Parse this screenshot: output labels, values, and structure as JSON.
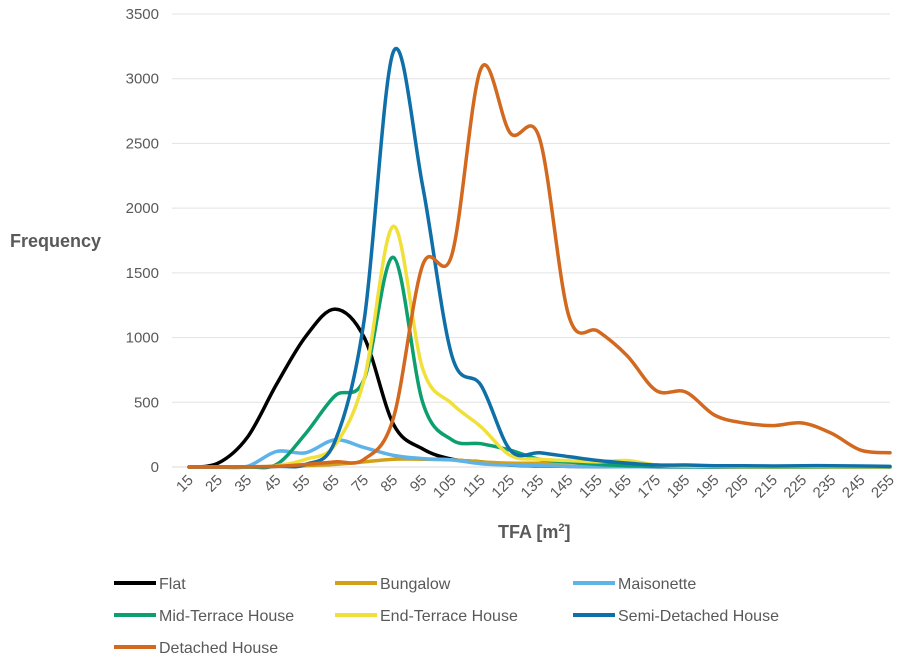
{
  "chart_data": {
    "type": "line",
    "xlabel": "TFA [m",
    "xlabel_sup": "2",
    "xlabel_close": "]",
    "ylabel": "Frequency",
    "ylim": [
      0,
      3500
    ],
    "yticks": [
      "0",
      "500",
      "1000",
      "1500",
      "2000",
      "2500",
      "3000",
      "3500"
    ],
    "x": [
      15,
      25,
      35,
      45,
      55,
      65,
      75,
      85,
      95,
      105,
      115,
      125,
      135,
      145,
      155,
      165,
      175,
      185,
      195,
      205,
      215,
      225,
      235,
      245,
      255
    ],
    "xticks": [
      "15",
      "25",
      "35",
      "45",
      "55",
      "65",
      "75",
      "85",
      "95",
      "105",
      "115",
      "125",
      "135",
      "145",
      "155",
      "165",
      "175",
      "185",
      "195",
      "205",
      "215",
      "225",
      "235",
      "245",
      "255"
    ],
    "grid": true,
    "legend_position": "bottom",
    "series": [
      {
        "name": "Flat",
        "color": "#000000",
        "values": [
          0,
          30,
          230,
          640,
          1010,
          1220,
          1000,
          330,
          140,
          60,
          40,
          15,
          8,
          5,
          3,
          2,
          1,
          1,
          0,
          0,
          0,
          0,
          0,
          0,
          0
        ]
      },
      {
        "name": "Bungalow",
        "color": "#D4A017",
        "values": [
          0,
          0,
          0,
          5,
          10,
          20,
          40,
          60,
          60,
          55,
          40,
          30,
          30,
          35,
          40,
          35,
          15,
          5,
          3,
          3,
          2,
          2,
          2,
          2,
          2
        ]
      },
      {
        "name": "Maisonette",
        "color": "#5DB3E8",
        "values": [
          0,
          0,
          5,
          120,
          110,
          210,
          150,
          90,
          65,
          55,
          25,
          15,
          10,
          5,
          3,
          2,
          1,
          0,
          0,
          0,
          0,
          0,
          0,
          0,
          0
        ]
      },
      {
        "name": "Mid-Terrace House",
        "color": "#0E9F6E",
        "values": [
          0,
          0,
          0,
          20,
          260,
          550,
          680,
          1620,
          500,
          210,
          180,
          130,
          60,
          40,
          20,
          10,
          5,
          3,
          2,
          1,
          0,
          0,
          0,
          0,
          0
        ]
      },
      {
        "name": "End-Terrace House",
        "color": "#F2E03A",
        "values": [
          0,
          0,
          0,
          10,
          60,
          170,
          680,
          1860,
          760,
          490,
          310,
          90,
          60,
          50,
          40,
          50,
          15,
          8,
          5,
          3,
          3,
          3,
          2,
          2,
          2
        ]
      },
      {
        "name": "Semi-Detached House",
        "color": "#0F6FA8",
        "values": [
          0,
          0,
          0,
          5,
          20,
          200,
          1140,
          3210,
          2170,
          860,
          630,
          130,
          110,
          80,
          50,
          30,
          15,
          15,
          10,
          10,
          8,
          10,
          10,
          8,
          5
        ]
      },
      {
        "name": "Detached House",
        "color": "#D2691E",
        "values": [
          0,
          0,
          2,
          5,
          20,
          40,
          60,
          380,
          1560,
          1640,
          3080,
          2580,
          2540,
          1170,
          1050,
          860,
          590,
          580,
          400,
          340,
          320,
          340,
          260,
          130,
          110
        ]
      }
    ]
  }
}
